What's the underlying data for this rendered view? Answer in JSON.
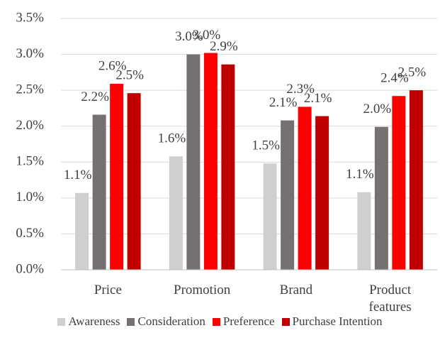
{
  "chart_data": {
    "type": "bar",
    "categories": [
      "Price",
      "Promotion",
      "Brand",
      "Product features"
    ],
    "series": [
      {
        "name": "Awareness",
        "color": "#d0cece",
        "values": [
          1.07,
          1.58,
          1.48,
          1.08
        ],
        "value_labels": [
          "1.1%",
          "1.6%",
          "1.5%",
          "1.1%"
        ]
      },
      {
        "name": "Consideration",
        "color": "#767171",
        "values": [
          2.16,
          3.0,
          2.08,
          1.99
        ],
        "value_labels": [
          "2.2%",
          "3.0%",
          "2.1%",
          "2.0%"
        ]
      },
      {
        "name": "Preference",
        "color": "#ff0000",
        "values": [
          2.59,
          3.02,
          2.27,
          2.42
        ],
        "value_labels": [
          "2.6%",
          "3.0%",
          "2.3%",
          "2.4%"
        ]
      },
      {
        "name": "Purchase Intention",
        "color": "#c00000",
        "values": [
          2.46,
          2.86,
          2.14,
          2.5
        ],
        "value_labels": [
          "2.5%",
          "2.9%",
          "2.1%",
          "2.5%"
        ]
      }
    ],
    "ylim": [
      0,
      3.5
    ],
    "yticks": [
      {
        "value": 0,
        "label": "0.0%"
      },
      {
        "value": 0.5,
        "label": "0.5%"
      },
      {
        "value": 1,
        "label": "1.0%"
      },
      {
        "value": 1.5,
        "label": "1.5%"
      },
      {
        "value": 2,
        "label": "2.0%"
      },
      {
        "value": 2.5,
        "label": "2.5%"
      },
      {
        "value": 3,
        "label": "3.0%"
      },
      {
        "value": 3.5,
        "label": "3.5%"
      }
    ],
    "grid": true
  }
}
